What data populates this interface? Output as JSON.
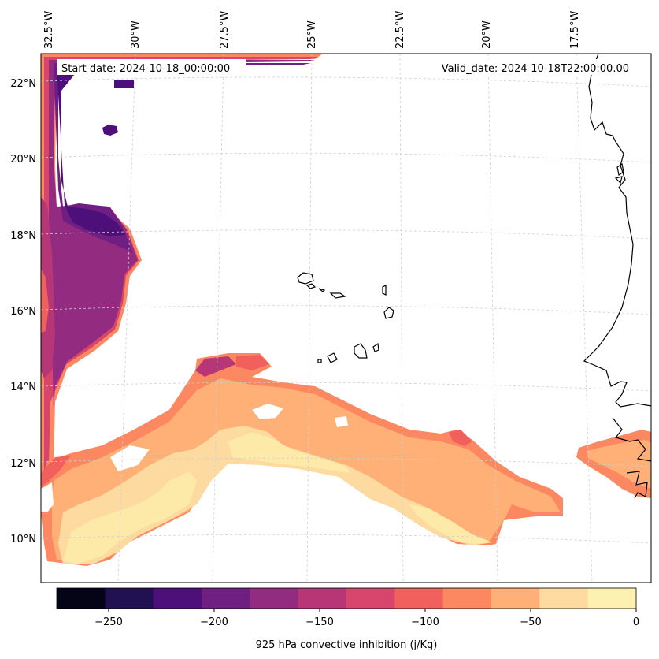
{
  "map": {
    "start_date": "Start date: 2024-10-18_00:00:00",
    "valid_date": "Valid_date: 2024-10-18T22:00:00.00",
    "lon_labels": [
      "32.5°W",
      "30°W",
      "27.5°W",
      "25°W",
      "22.5°W",
      "20°W",
      "17.5°W"
    ],
    "lat_labels": [
      "22°N",
      "20°N",
      "18°N",
      "16°N",
      "14°N",
      "12°N",
      "10°N"
    ],
    "gridlines": "dashed-light-gray"
  },
  "colorbar": {
    "label": "925 hPa convective inhibition (j/Kg)",
    "ticks": [
      "−250",
      "−200",
      "−150",
      "−100",
      "−50",
      "0"
    ],
    "colors": [
      "#050417",
      "#221150",
      "#4d107a",
      "#6f1f81",
      "#932b80",
      "#b63678",
      "#d8456c",
      "#f1605d",
      "#fb8861",
      "#feb077",
      "#fcdaa0",
      "#fcf1b0"
    ]
  },
  "palette": {
    "c_n225": "#4d107a",
    "c_n200": "#6f1f81",
    "c_n175": "#932b80",
    "c_n150": "#b63678",
    "c_n125": "#d8456c",
    "c_n100": "#f1605d",
    "c_n75": "#fb8861",
    "c_n50": "#feb077",
    "c_n25": "#fcdaa0",
    "c_0": "#fde9a8"
  }
}
